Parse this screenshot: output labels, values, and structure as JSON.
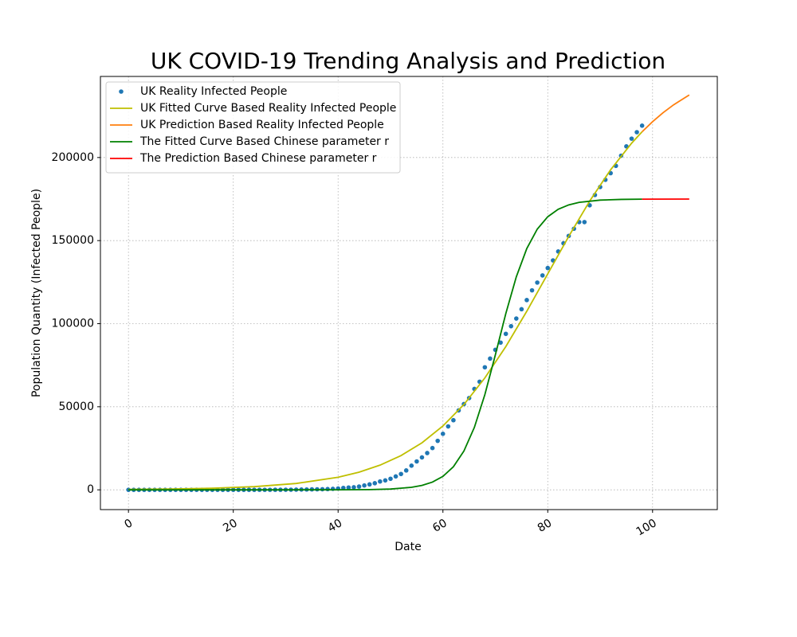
{
  "chart_data": {
    "type": "line",
    "title": "UK COVID-19 Trending Analysis and Prediction",
    "x_label": "Date",
    "y_label": "Population Quantity  (Infected People)",
    "xlim": [
      -5.35,
      112.35
    ],
    "ylim": [
      -11900,
      248800
    ],
    "xticks": [
      0,
      20,
      40,
      60,
      80,
      100
    ],
    "yticks": [
      0,
      50000,
      100000,
      150000,
      200000
    ],
    "grid": true,
    "legend": "upper left",
    "series": [
      {
        "name": "UK Reality Infected People",
        "kind": "scatter",
        "color": "#1f77b4",
        "x": [
          0,
          1,
          2,
          3,
          4,
          5,
          6,
          7,
          8,
          9,
          10,
          11,
          12,
          13,
          14,
          15,
          16,
          17,
          18,
          19,
          20,
          21,
          22,
          23,
          24,
          25,
          26,
          27,
          28,
          29,
          30,
          31,
          32,
          33,
          34,
          35,
          36,
          37,
          38,
          39,
          40,
          41,
          42,
          43,
          44,
          45,
          46,
          47,
          48,
          49,
          50,
          51,
          52,
          53,
          54,
          55,
          56,
          57,
          58,
          59,
          60,
          61,
          62,
          63,
          64,
          65,
          66,
          67,
          68,
          69,
          70,
          71,
          72,
          73,
          74,
          75,
          76,
          77,
          78,
          79,
          80,
          81,
          82,
          83,
          84,
          85,
          86,
          87,
          88,
          89,
          90,
          91,
          92,
          93,
          94,
          95,
          96,
          97,
          98
        ],
        "values": [
          2,
          2,
          2,
          2,
          3,
          3,
          3,
          3,
          8,
          8,
          9,
          9,
          9,
          9,
          9,
          9,
          9,
          9,
          9,
          9,
          9,
          9,
          9,
          9,
          13,
          15,
          20,
          23,
          36,
          40,
          51,
          85,
          115,
          163,
          206,
          273,
          321,
          373,
          460,
          594,
          798,
          1140,
          1391,
          1543,
          1950,
          2626,
          3269,
          3983,
          5018,
          5683,
          6650,
          8077,
          9529,
          11658,
          14543,
          17089,
          19522,
          22141,
          25150,
          29474,
          33718,
          38168,
          41903,
          47806,
          51608,
          55242,
          60733,
          65077,
          73758,
          78991,
          84279,
          88621,
          93873,
          98476,
          103093,
          108692,
          114217,
          120067,
          124743,
          129044,
          133495,
          138078,
          143464,
          148377,
          152840,
          157149,
          161145,
          161145,
          171253,
          177454,
          182260,
          186599,
          190584,
          194990,
          201101,
          206715,
          211364,
          215260,
          219183
        ]
      },
      {
        "name": "UK Fitted Curve Based Reality Infected People",
        "kind": "line",
        "color": "#bfbf00",
        "x": [
          0,
          8,
          16,
          24,
          32,
          40,
          44,
          48,
          52,
          56,
          60,
          64,
          68,
          72,
          76,
          80,
          84,
          88,
          92,
          96,
          98
        ],
        "values": [
          235,
          473,
          952,
          1910,
          3820,
          7590,
          10640,
          14860,
          20600,
          28310,
          38430,
          51350,
          67340,
          86210,
          107480,
          130000,
          152520,
          173780,
          192650,
          208610,
          215480
        ]
      },
      {
        "name": "UK Prediction Based Reality Infected People",
        "kind": "line",
        "color": "#ff7f0e",
        "x": [
          98,
          100,
          102,
          104,
          107
        ],
        "values": [
          215480,
          221580,
          226960,
          231690,
          237680
        ]
      },
      {
        "name": "The Fitted Curve Based Chinese parameter r",
        "kind": "line",
        "color": "#008000",
        "x": [
          0,
          30,
          40,
          46,
          50,
          54,
          56,
          58,
          60,
          62,
          64,
          66,
          68,
          70,
          72,
          74,
          76,
          78,
          80,
          82,
          84,
          86,
          90,
          94,
          98
        ],
        "values": [
          0,
          1.5,
          26.8,
          150.6,
          476,
          1498,
          2645,
          4654,
          8113,
          13920,
          23330,
          37590,
          57300,
          81210,
          106120,
          128210,
          145220,
          156910,
          164350,
          168850,
          171490,
          173010,
          174370,
          174800,
          174940
        ]
      },
      {
        "name": "The Prediction Based Chinese parameter r",
        "kind": "line",
        "color": "#ff0000",
        "x": [
          98,
          107
        ],
        "values": [
          174940,
          174995
        ]
      }
    ]
  }
}
